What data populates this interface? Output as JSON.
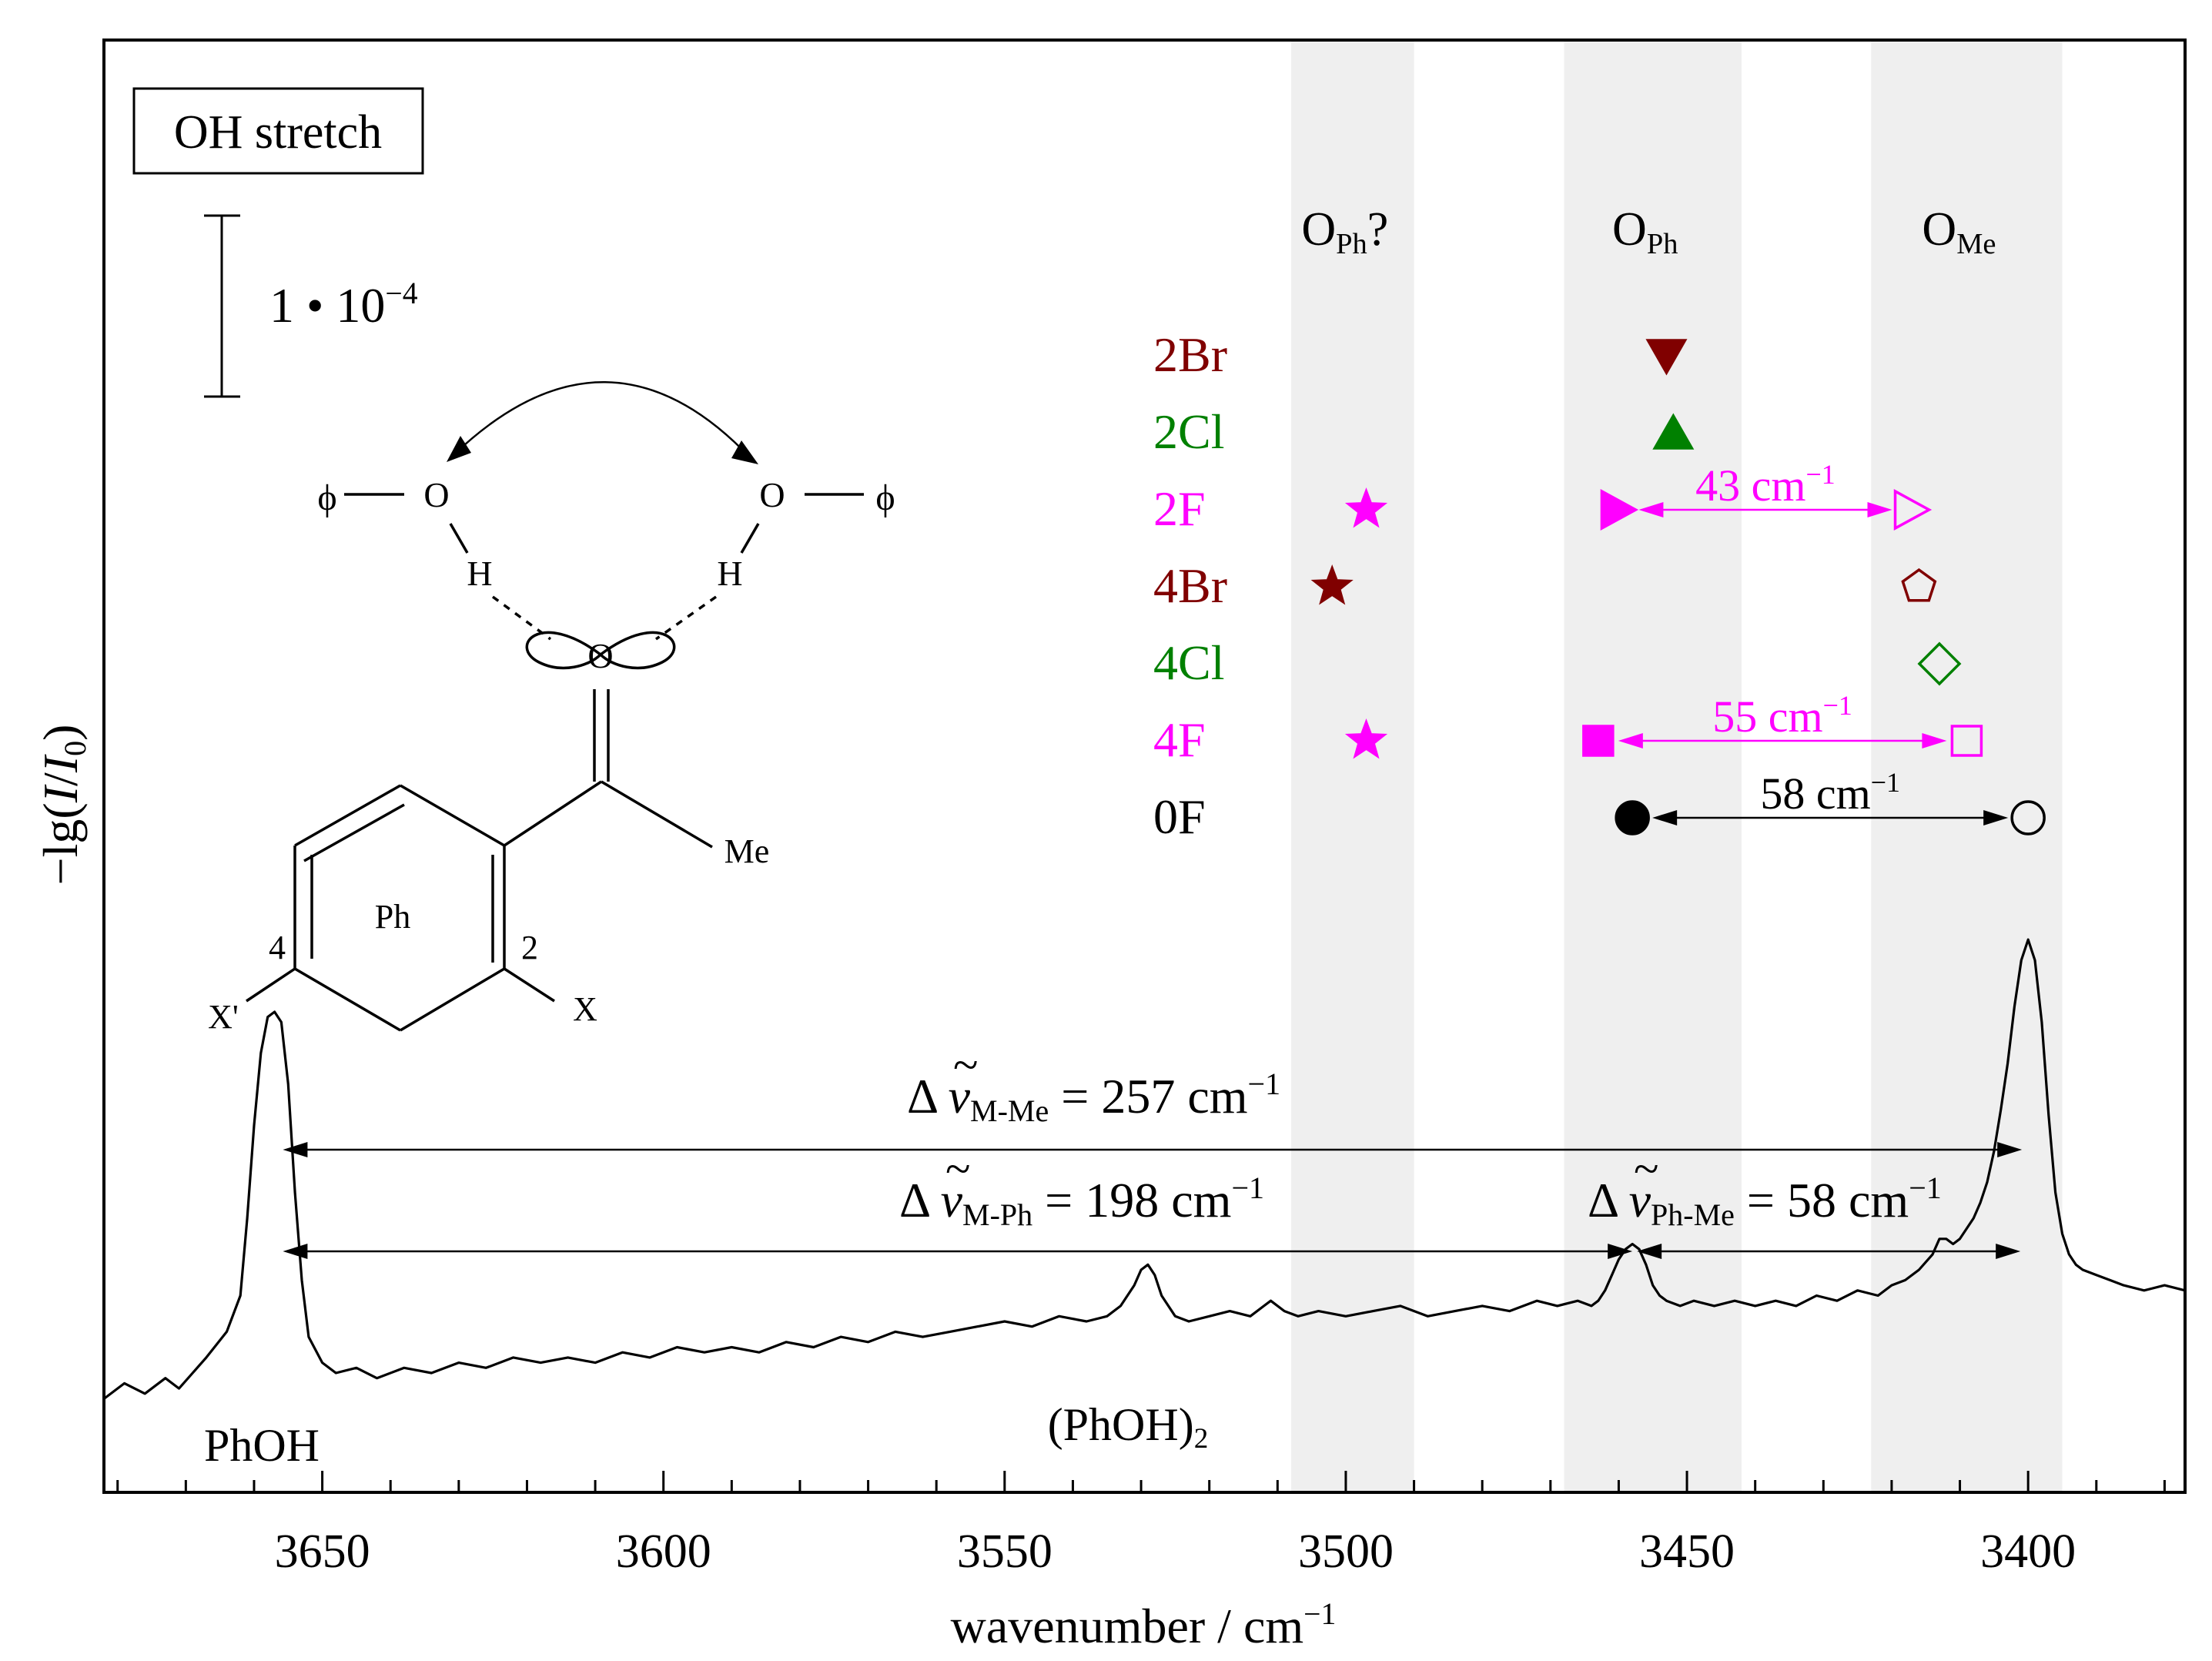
{
  "chart_data": {
    "type": "line",
    "title": "OH stretch",
    "xlabel": "wavenumber / cm",
    "xlabel_exp": "−1",
    "ylabel_main": "−lg(",
    "ylabel_I": "I",
    "ylabel_slash": "/",
    "ylabel_I0": "I",
    "ylabel_sub": "0",
    "ylabel_close": ")",
    "xlim": [
      3682,
      3377
    ],
    "ylim": [
      0,
      1
    ],
    "x_ticks": [
      3650,
      3600,
      3550,
      3500,
      3450,
      3400
    ],
    "x_tick_labels": [
      "3650",
      "3600",
      "3550",
      "3500",
      "3450",
      "3400"
    ],
    "scale_bar": {
      "label": "1 • 10",
      "exp": "−4"
    },
    "bands": [
      {
        "from": 3508,
        "to": 3490,
        "label": "O",
        "sub": "Ph",
        "suffix": "?"
      },
      {
        "from": 3468,
        "to": 3442,
        "label": "O",
        "sub": "Ph",
        "suffix": ""
      },
      {
        "from": 3423,
        "to": 3395,
        "label": "O",
        "sub": "Me",
        "suffix": ""
      }
    ],
    "compounds": [
      {
        "name": "2Br",
        "color": "#800000",
        "points": [
          {
            "x": 3453,
            "marker": "triangle-down",
            "filled": true
          }
        ]
      },
      {
        "name": "2Cl",
        "color": "#008000",
        "points": [
          {
            "x": 3452,
            "marker": "triangle-up",
            "filled": true
          }
        ]
      },
      {
        "name": "2F",
        "color": "#ff00ff",
        "points": [
          {
            "x": 3497,
            "marker": "star",
            "filled": true
          },
          {
            "x": 3460,
            "marker": "triangle-right",
            "filled": true
          },
          {
            "x": 3417,
            "marker": "triangle-right",
            "filled": false
          }
        ]
      },
      {
        "name": "4Br",
        "color": "#800000",
        "points": [
          {
            "x": 3502,
            "marker": "star",
            "filled": true
          },
          {
            "x": 3416,
            "marker": "pentagon",
            "filled": false
          }
        ]
      },
      {
        "name": "4Cl",
        "color": "#008000",
        "points": [
          {
            "x": 3413,
            "marker": "diamond",
            "filled": false
          }
        ]
      },
      {
        "name": "4F",
        "color": "#ff00ff",
        "points": [
          {
            "x": 3497,
            "marker": "star",
            "filled": true
          },
          {
            "x": 3463,
            "marker": "square",
            "filled": true
          },
          {
            "x": 3409,
            "marker": "square",
            "filled": false
          }
        ]
      },
      {
        "name": "0F",
        "color": "#000000",
        "points": [
          {
            "x": 3458,
            "marker": "circle",
            "filled": true
          },
          {
            "x": 3400,
            "marker": "circle",
            "filled": false
          }
        ]
      }
    ],
    "compound_splittings": [
      {
        "row": 2,
        "from": 3460,
        "to": 3417,
        "value": "43 cm",
        "exp": "−1",
        "color": "#ff00ff"
      },
      {
        "row": 5,
        "from": 3463,
        "to": 3409,
        "value": "55 cm",
        "exp": "−1",
        "color": "#ff00ff"
      },
      {
        "row": 6,
        "from": 3458,
        "to": 3400,
        "value": "58 cm",
        "exp": "−1",
        "color": "#000000"
      }
    ],
    "delta_annotations": [
      {
        "prefix": "Δ ",
        "symbol": "ν",
        "tilde": "~",
        "sub": "M-Me",
        "value": " = 257 cm",
        "exp": "−1",
        "from": 3656,
        "to": 3400
      },
      {
        "prefix": "Δ ",
        "symbol": "ν",
        "tilde": "~",
        "sub": "M-Ph",
        "value": " = 198 cm",
        "exp": "−1",
        "from": 3656,
        "to": 3458
      },
      {
        "prefix": "Δ ",
        "symbol": "ν",
        "tilde": "~",
        "sub": "Ph-Me",
        "value": " = 58 cm",
        "exp": "−1",
        "from": 3458,
        "to": 3400
      }
    ],
    "peak_labels": [
      {
        "text": "PhOH",
        "sub": "",
        "x": 3657
      },
      {
        "text": "(PhOH)",
        "sub": "2",
        "x": 3529
      }
    ],
    "series": [
      {
        "name": "OH stretch spectrum",
        "x": [
          3682,
          3679,
          3676,
          3673,
          3671,
          3669,
          3667,
          3664,
          3662,
          3661,
          3660,
          3659,
          3658,
          3657,
          3656,
          3655,
          3654,
          3653,
          3652,
          3650,
          3648,
          3645,
          3642,
          3638,
          3634,
          3630,
          3626,
          3622,
          3618,
          3614,
          3610,
          3606,
          3602,
          3598,
          3594,
          3590,
          3586,
          3582,
          3578,
          3574,
          3570,
          3566,
          3562,
          3558,
          3554,
          3550,
          3546,
          3542,
          3538,
          3535,
          3533,
          3531,
          3530,
          3529,
          3528,
          3527,
          3525,
          3523,
          3520,
          3517,
          3514,
          3512,
          3511,
          3509,
          3507,
          3504,
          3500,
          3496,
          3492,
          3488,
          3484,
          3480,
          3476,
          3472,
          3469,
          3466,
          3464,
          3463,
          3462,
          3461,
          3460,
          3459,
          3458,
          3457,
          3456,
          3455,
          3454,
          3453,
          3451,
          3449,
          3446,
          3443,
          3440,
          3437,
          3434,
          3431,
          3428,
          3425,
          3422,
          3420,
          3418,
          3416,
          3414,
          3413,
          3412,
          3411,
          3410,
          3409,
          3408,
          3407,
          3406,
          3405,
          3404,
          3403,
          3402,
          3401,
          3400,
          3399,
          3398,
          3397,
          3396,
          3395,
          3394,
          3393,
          3392,
          3390,
          3388,
          3386,
          3383,
          3380,
          3377
        ],
        "y": [
          0.05,
          0.08,
          0.06,
          0.09,
          0.07,
          0.1,
          0.13,
          0.18,
          0.25,
          0.4,
          0.58,
          0.72,
          0.79,
          0.8,
          0.78,
          0.66,
          0.45,
          0.28,
          0.17,
          0.12,
          0.1,
          0.11,
          0.09,
          0.11,
          0.1,
          0.12,
          0.11,
          0.13,
          0.12,
          0.13,
          0.12,
          0.14,
          0.13,
          0.15,
          0.14,
          0.15,
          0.14,
          0.16,
          0.15,
          0.17,
          0.16,
          0.18,
          0.17,
          0.18,
          0.19,
          0.2,
          0.19,
          0.21,
          0.2,
          0.21,
          0.23,
          0.27,
          0.3,
          0.31,
          0.29,
          0.25,
          0.21,
          0.2,
          0.21,
          0.22,
          0.21,
          0.23,
          0.24,
          0.22,
          0.21,
          0.22,
          0.21,
          0.22,
          0.23,
          0.21,
          0.22,
          0.23,
          0.22,
          0.24,
          0.23,
          0.24,
          0.23,
          0.24,
          0.26,
          0.29,
          0.32,
          0.34,
          0.35,
          0.34,
          0.31,
          0.27,
          0.25,
          0.24,
          0.23,
          0.24,
          0.23,
          0.24,
          0.23,
          0.24,
          0.23,
          0.25,
          0.24,
          0.26,
          0.25,
          0.27,
          0.28,
          0.3,
          0.33,
          0.36,
          0.36,
          0.35,
          0.36,
          0.38,
          0.4,
          0.43,
          0.47,
          0.53,
          0.61,
          0.7,
          0.81,
          0.9,
          0.94,
          0.9,
          0.78,
          0.6,
          0.45,
          0.37,
          0.33,
          0.31,
          0.3,
          0.29,
          0.28,
          0.27,
          0.26,
          0.27,
          0.26
        ]
      }
    ],
    "structure": {
      "phi_left": "ϕ",
      "phi_right": "ϕ",
      "O_left": "O",
      "O_right": "O",
      "H_left": "H",
      "H_right": "H",
      "O_center": "O",
      "Me": "Me",
      "Ph": "Ph",
      "pos4": "4",
      "pos2": "2",
      "X_prime": "X'",
      "X": "X"
    }
  },
  "colors": {
    "band": "#efefef",
    "magenta": "#ff00ff",
    "darkred": "#800000",
    "green": "#008000",
    "black": "#000000"
  }
}
